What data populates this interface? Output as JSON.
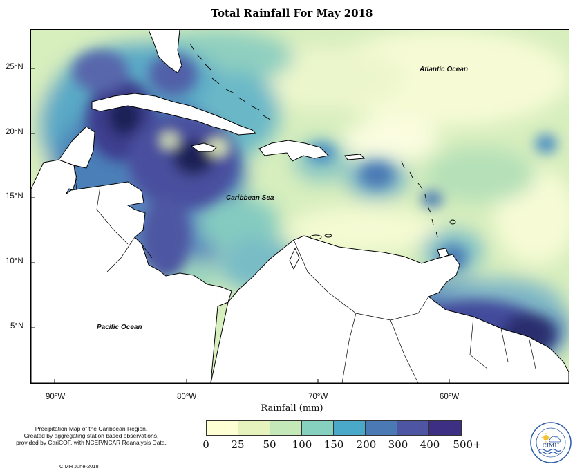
{
  "title": "Total Rainfall For May 2018",
  "ocean_labels": {
    "atlantic": "Atlantic Ocean",
    "caribbean": "Caribbean Sea",
    "pacific": "Pacific Ocean"
  },
  "axes": {
    "x_ticks": [
      "90°W",
      "80°W",
      "70°W",
      "60°W"
    ],
    "y_ticks": [
      "25°N",
      "20°N",
      "15°N",
      "10°N",
      "5°N"
    ],
    "xlabel": "Rainfall (mm)"
  },
  "legend": {
    "labels": [
      "0",
      "25",
      "50",
      "100",
      "150",
      "200",
      "300",
      "400",
      "500+"
    ],
    "colors": [
      "#ffffd4",
      "#e6f3bd",
      "#c5e8b8",
      "#85d0bf",
      "#4aa8c8",
      "#4a79b4",
      "#4e56a3",
      "#3c2f84",
      "#1f2457"
    ]
  },
  "notes": {
    "line1": "Precipitation Map of the Caribbean Region.",
    "line2": "Created by aggregating station based observations,",
    "line3": "provided by CariCOF, with NCEP/NCAR Reanalysis Data.",
    "credit": "CIMH June-2018"
  },
  "logo": {
    "text": "CIMH",
    "icon": "cimh-logo-icon"
  }
}
